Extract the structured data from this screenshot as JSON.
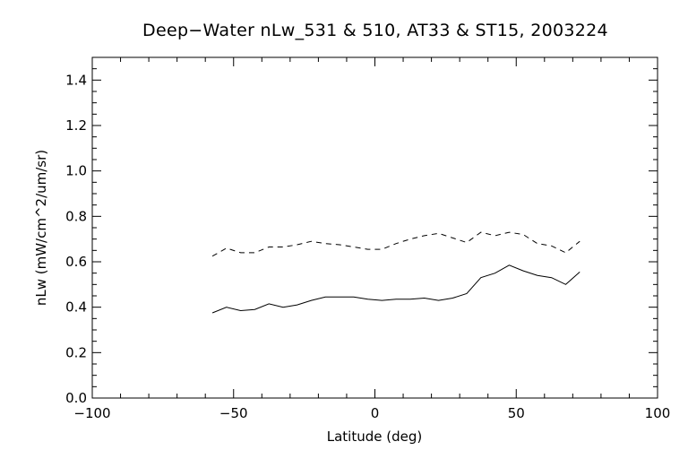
{
  "chart_data": {
    "type": "line",
    "title": "Deep−Water nLw_531 & 510, AT33 & ST15, 2003224",
    "xlabel": "Latitude (deg)",
    "ylabel": "nLw (mW/cm^2/um/sr)",
    "xlim": [
      -100,
      100
    ],
    "ylim": [
      0.0,
      1.5
    ],
    "x_ticks": [
      "−100",
      "−50",
      "0",
      "50",
      "100"
    ],
    "y_ticks": [
      "0.0",
      "0.2",
      "0.4",
      "0.6",
      "0.8",
      "1.0",
      "1.2",
      "1.4"
    ],
    "grid": false,
    "series": [
      {
        "style": "dashed",
        "color": "#000000",
        "x": [
          -57.5,
          -52.5,
          -47.5,
          -42.5,
          -37.5,
          -32.5,
          -27.5,
          -22.5,
          -17.5,
          -12.5,
          -7.5,
          -2.5,
          2.5,
          7.5,
          12.5,
          17.5,
          22.5,
          27.5,
          32.5,
          37.5,
          42.5,
          47.5,
          52.5,
          57.5,
          62.5,
          67.5,
          72.5
        ],
        "values": [
          0.625,
          0.66,
          0.64,
          0.64,
          0.665,
          0.665,
          0.675,
          0.69,
          0.68,
          0.675,
          0.665,
          0.655,
          0.655,
          0.68,
          0.7,
          0.715,
          0.725,
          0.705,
          0.685,
          0.73,
          0.715,
          0.73,
          0.72,
          0.68,
          0.67,
          0.64,
          0.69
        ]
      },
      {
        "style": "solid",
        "color": "#000000",
        "x": [
          -57.5,
          -52.5,
          -47.5,
          -42.5,
          -37.5,
          -32.5,
          -27.5,
          -22.5,
          -17.5,
          -12.5,
          -7.5,
          -2.5,
          2.5,
          7.5,
          12.5,
          17.5,
          22.5,
          27.5,
          32.5,
          37.5,
          42.5,
          47.5,
          52.5,
          57.5,
          62.5,
          67.5,
          72.5
        ],
        "values": [
          0.375,
          0.4,
          0.385,
          0.39,
          0.415,
          0.4,
          0.41,
          0.43,
          0.445,
          0.445,
          0.445,
          0.435,
          0.43,
          0.435,
          0.435,
          0.44,
          0.43,
          0.44,
          0.46,
          0.53,
          0.55,
          0.585,
          0.56,
          0.54,
          0.53,
          0.5,
          0.555
        ]
      }
    ]
  }
}
